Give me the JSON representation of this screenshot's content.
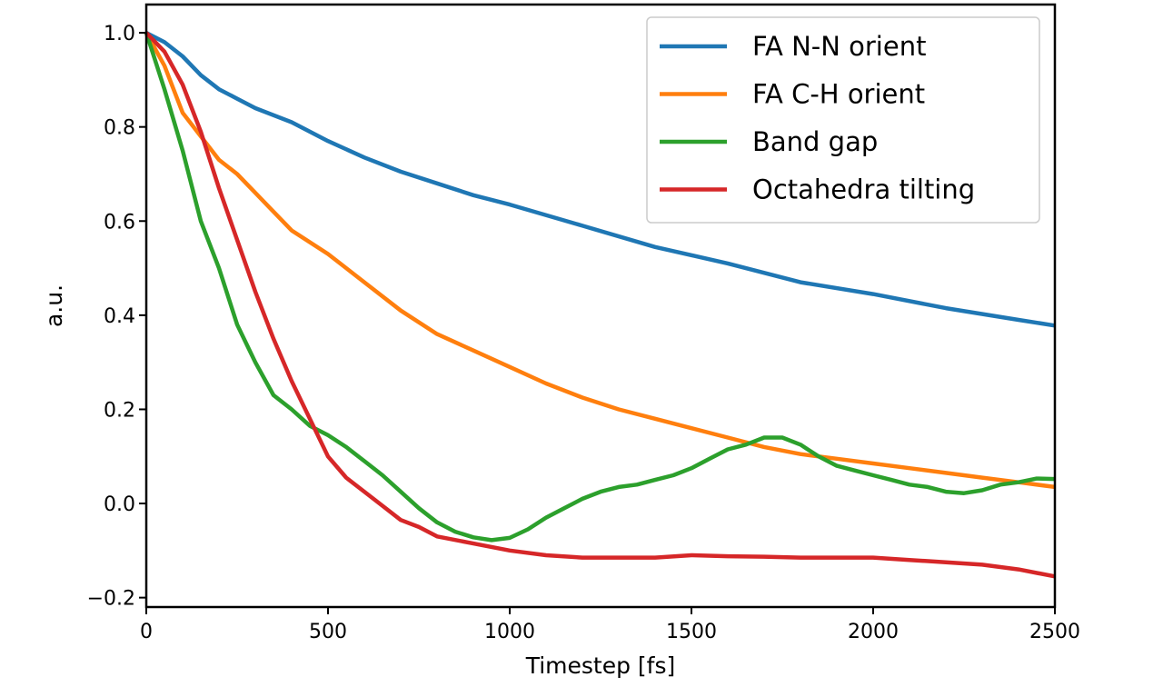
{
  "chart_data": {
    "type": "line",
    "title": "",
    "xlabel": "Timestep [fs]",
    "ylabel": "a.u.",
    "xlim": [
      0,
      2500
    ],
    "ylim": [
      -0.22,
      1.06
    ],
    "xticks": [
      0,
      500,
      1000,
      1500,
      2000,
      2500
    ],
    "xtick_labels": [
      "0",
      "500",
      "1000",
      "1500",
      "2000",
      "2500"
    ],
    "yticks": [
      -0.2,
      0.0,
      0.2,
      0.4,
      0.6,
      0.8,
      1.0
    ],
    "ytick_labels": [
      "−0.2",
      "0.0",
      "0.2",
      "0.4",
      "0.6",
      "0.8",
      "1.0"
    ],
    "grid": false,
    "legend_position": "top-right",
    "series": [
      {
        "name": "FA N-N orient",
        "color": "#1f77b4",
        "x": [
          0,
          50,
          100,
          150,
          200,
          250,
          300,
          400,
          500,
          600,
          700,
          800,
          900,
          1000,
          1200,
          1400,
          1600,
          1800,
          2000,
          2200,
          2400,
          2500
        ],
        "y": [
          1.0,
          0.98,
          0.95,
          0.91,
          0.88,
          0.86,
          0.84,
          0.81,
          0.77,
          0.735,
          0.705,
          0.68,
          0.655,
          0.635,
          0.59,
          0.545,
          0.51,
          0.47,
          0.445,
          0.415,
          0.39,
          0.378
        ]
      },
      {
        "name": "FA C-H orient",
        "color": "#ff7f0e",
        "x": [
          0,
          50,
          100,
          150,
          200,
          250,
          300,
          350,
          400,
          500,
          600,
          700,
          800,
          900,
          1000,
          1100,
          1200,
          1300,
          1400,
          1500,
          1600,
          1700,
          1800,
          1900,
          2000,
          2100,
          2200,
          2300,
          2400,
          2500
        ],
        "y": [
          1.0,
          0.93,
          0.83,
          0.78,
          0.73,
          0.7,
          0.66,
          0.62,
          0.58,
          0.53,
          0.47,
          0.41,
          0.36,
          0.325,
          0.29,
          0.255,
          0.225,
          0.2,
          0.18,
          0.16,
          0.14,
          0.12,
          0.105,
          0.095,
          0.085,
          0.075,
          0.065,
          0.055,
          0.045,
          0.035
        ]
      },
      {
        "name": "Band gap",
        "color": "#2ca02c",
        "x": [
          0,
          50,
          100,
          150,
          200,
          250,
          300,
          350,
          400,
          450,
          500,
          550,
          600,
          650,
          700,
          750,
          800,
          850,
          900,
          950,
          1000,
          1050,
          1100,
          1150,
          1200,
          1250,
          1300,
          1350,
          1400,
          1450,
          1500,
          1550,
          1600,
          1650,
          1700,
          1750,
          1800,
          1850,
          1900,
          1950,
          2000,
          2050,
          2100,
          2150,
          2200,
          2250,
          2300,
          2350,
          2400,
          2450,
          2500
        ],
        "y": [
          1.0,
          0.88,
          0.75,
          0.6,
          0.5,
          0.38,
          0.3,
          0.23,
          0.2,
          0.165,
          0.145,
          0.12,
          0.09,
          0.06,
          0.025,
          -0.01,
          -0.04,
          -0.06,
          -0.072,
          -0.078,
          -0.073,
          -0.055,
          -0.03,
          -0.01,
          0.01,
          0.025,
          0.035,
          0.04,
          0.05,
          0.06,
          0.075,
          0.095,
          0.115,
          0.125,
          0.14,
          0.14,
          0.125,
          0.1,
          0.08,
          0.07,
          0.06,
          0.05,
          0.04,
          0.035,
          0.025,
          0.022,
          0.028,
          0.04,
          0.045,
          0.053,
          0.052
        ]
      },
      {
        "name": "Octahedra tilting",
        "color": "#d62728",
        "x": [
          0,
          50,
          100,
          150,
          200,
          250,
          300,
          350,
          400,
          450,
          500,
          550,
          600,
          650,
          700,
          750,
          800,
          900,
          1000,
          1100,
          1200,
          1300,
          1400,
          1500,
          1600,
          1700,
          1800,
          1900,
          2000,
          2100,
          2200,
          2300,
          2400,
          2500
        ],
        "y": [
          1.0,
          0.96,
          0.89,
          0.79,
          0.67,
          0.56,
          0.45,
          0.35,
          0.26,
          0.18,
          0.1,
          0.055,
          0.025,
          -0.005,
          -0.035,
          -0.05,
          -0.07,
          -0.085,
          -0.1,
          -0.11,
          -0.115,
          -0.115,
          -0.115,
          -0.11,
          -0.112,
          -0.113,
          -0.115,
          -0.115,
          -0.115,
          -0.12,
          -0.125,
          -0.13,
          -0.14,
          -0.155
        ]
      }
    ]
  }
}
